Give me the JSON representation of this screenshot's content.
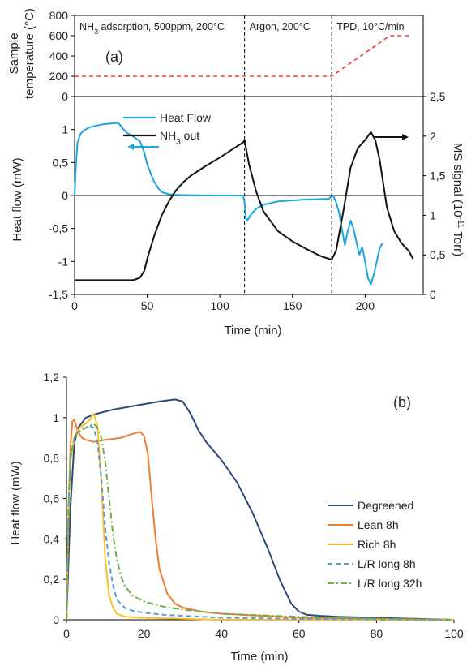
{
  "chart_data": [
    {
      "panel": "(a) top",
      "type": "line",
      "ylabel_line1": "Sample",
      "ylabel_line2": "temperature (°C)",
      "ylim": [
        0,
        800
      ],
      "yticks": [
        "0",
        "200",
        "400",
        "600",
        "800"
      ],
      "xlim": [
        0,
        240
      ],
      "panel_label": "(a)",
      "phases": [
        {
          "label": "NH3 adsorption, 500ppm, 200°C",
          "x_start": 0,
          "x_end": 117
        },
        {
          "label": "Argon, 200°C",
          "x_start": 117,
          "x_end": 177
        },
        {
          "label": "TPD, 10°C/min",
          "x_start": 177,
          "x_end": 240
        }
      ],
      "series": [
        {
          "color": "#ff3a2a",
          "style": "dashed",
          "x": [
            0,
            177,
            217,
            230
          ],
          "y": [
            200,
            200,
            600,
            600
          ]
        }
      ]
    },
    {
      "panel": "(a) bottom",
      "type": "line",
      "xlabel": "Time (min)",
      "xlim": [
        0,
        240
      ],
      "xticks": [
        "0",
        "50",
        "100",
        "150",
        "200"
      ],
      "ylabel": "Heat flow (mW)",
      "ylim": [
        -1.5,
        1.5
      ],
      "yticks": [
        "-1,5",
        "-1",
        "-0,5",
        "0",
        "0,5",
        "1"
      ],
      "y2label": "MS signal (10-11 Torr)",
      "y2lim": [
        0,
        2.5
      ],
      "y2ticks": [
        "0",
        "0,5",
        "1",
        "1,5",
        "2",
        "2,5"
      ],
      "vlines": [
        117,
        177
      ],
      "series": [
        {
          "name": "Heat Flow",
          "axis": "left",
          "color": "#1aa7e0",
          "x": [
            0,
            1,
            2,
            4,
            6,
            10,
            15,
            20,
            25,
            30,
            33,
            36,
            40,
            45,
            48,
            50,
            53,
            55,
            58,
            60,
            65,
            70,
            80,
            100,
            116,
            117,
            118,
            119,
            121,
            125,
            130,
            140,
            160,
            175,
            176,
            178,
            180,
            182,
            184,
            186,
            188,
            190,
            192,
            194,
            196,
            198,
            200,
            202,
            204,
            206,
            208,
            210,
            212
          ],
          "y": [
            0,
            0.5,
            0.8,
            0.93,
            0.98,
            1.03,
            1.06,
            1.08,
            1.09,
            1.1,
            1.02,
            0.95,
            0.9,
            0.82,
            0.65,
            0.47,
            0.3,
            0.2,
            0.1,
            0.05,
            0.02,
            0.01,
            0.005,
            0,
            0,
            -0.1,
            -0.35,
            -0.38,
            -0.3,
            -0.2,
            -0.14,
            -0.09,
            -0.06,
            -0.05,
            -0.03,
            0,
            -0.1,
            -0.25,
            -0.5,
            -0.75,
            -0.55,
            -0.38,
            -0.5,
            -0.7,
            -0.9,
            -0.78,
            -1.0,
            -1.25,
            -1.35,
            -1.2,
            -1.0,
            -0.8,
            -0.72
          ]
        },
        {
          "name": "NH3 out",
          "axis": "right",
          "color": "#111111",
          "x": [
            0,
            10,
            20,
            30,
            40,
            45,
            48,
            50,
            55,
            60,
            65,
            70,
            75,
            80,
            90,
            100,
            110,
            116,
            117,
            118,
            120,
            125,
            130,
            140,
            150,
            160,
            170,
            177,
            180,
            185,
            190,
            195,
            200,
            204,
            207,
            210,
            215,
            220,
            225,
            230,
            233
          ],
          "y": [
            0.18,
            0.18,
            0.18,
            0.18,
            0.18,
            0.21,
            0.3,
            0.45,
            0.75,
            1.0,
            1.18,
            1.32,
            1.42,
            1.5,
            1.62,
            1.73,
            1.85,
            1.92,
            1.95,
            1.85,
            1.65,
            1.3,
            1.05,
            0.8,
            0.67,
            0.57,
            0.48,
            0.44,
            0.55,
            1.05,
            1.6,
            1.85,
            1.95,
            2.05,
            1.95,
            1.7,
            1.1,
            0.8,
            0.65,
            0.55,
            0.45
          ]
        }
      ],
      "arrows": [
        {
          "direction": "left"
        },
        {
          "direction": "right"
        }
      ]
    },
    {
      "panel": "(b)",
      "type": "line",
      "xlabel": "Time (min)",
      "xlim": [
        0,
        100
      ],
      "xticks": [
        "0",
        "20",
        "40",
        "60",
        "80",
        "100"
      ],
      "ylabel": "Heat flow (mW)",
      "ylim": [
        0,
        1.2
      ],
      "yticks": [
        "0",
        "0,2",
        "0,4",
        "0,6",
        "0,8",
        "1",
        "1,2"
      ],
      "panel_label": "(b)",
      "legend_position": "right",
      "series": [
        {
          "name": "Degreened",
          "color": "#2e4a7a",
          "style": "solid",
          "x": [
            0,
            1,
            2,
            3,
            5,
            8,
            12,
            18,
            24,
            28,
            30,
            32,
            34,
            36,
            40,
            44,
            48,
            52,
            55,
            58,
            60,
            62,
            65,
            70,
            80,
            90,
            100
          ],
          "y": [
            0,
            0.55,
            0.87,
            0.95,
            1.0,
            1.02,
            1.04,
            1.06,
            1.08,
            1.09,
            1.08,
            1.02,
            0.94,
            0.88,
            0.79,
            0.68,
            0.53,
            0.35,
            0.2,
            0.08,
            0.04,
            0.025,
            0.02,
            0.015,
            0.01,
            0.005,
            0
          ]
        },
        {
          "name": "Lean 8h",
          "color": "#ef7d32",
          "style": "solid",
          "x": [
            0,
            0.5,
            1,
            1.5,
            2,
            3,
            4,
            5,
            7,
            10,
            14,
            17,
            19,
            20,
            21,
            22,
            23,
            24,
            26,
            28,
            30,
            35,
            40,
            50,
            60,
            80,
            100
          ],
          "y": [
            0,
            0.5,
            0.85,
            0.98,
            0.99,
            0.93,
            0.9,
            0.89,
            0.88,
            0.89,
            0.9,
            0.92,
            0.93,
            0.91,
            0.82,
            0.6,
            0.4,
            0.25,
            0.13,
            0.08,
            0.06,
            0.04,
            0.03,
            0.02,
            0.01,
            0.005,
            0
          ]
        },
        {
          "name": "Rich 8h",
          "color": "#fbbd2a",
          "style": "solid",
          "x": [
            0,
            0.5,
            1,
            2,
            3,
            4,
            5,
            6,
            7,
            8,
            9,
            10,
            11,
            12,
            13,
            15,
            20,
            30,
            40,
            60,
            100
          ],
          "y": [
            0,
            0.5,
            0.78,
            0.9,
            0.94,
            0.96,
            0.97,
            0.99,
            1.02,
            0.96,
            0.68,
            0.3,
            0.12,
            0.06,
            0.03,
            0.015,
            0.01,
            0.005,
            0,
            0,
            0
          ]
        },
        {
          "name": "L/R long 8h",
          "color": "#5b9bd5",
          "style": "dashed",
          "x": [
            0,
            0.5,
            1,
            2,
            3,
            4,
            5,
            6,
            7,
            8,
            9,
            10,
            11,
            12,
            13,
            15,
            17,
            20,
            25,
            30,
            40,
            60,
            100
          ],
          "y": [
            0,
            0.55,
            0.8,
            0.9,
            0.93,
            0.94,
            0.95,
            0.96,
            0.95,
            0.88,
            0.7,
            0.45,
            0.28,
            0.17,
            0.1,
            0.06,
            0.045,
            0.035,
            0.025,
            0.02,
            0.01,
            0.005,
            0
          ]
        },
        {
          "name": "L/R long 32h",
          "color": "#70ad47",
          "style": "dashdot",
          "x": [
            0,
            0.5,
            1,
            2,
            3,
            4,
            5,
            6,
            7,
            8,
            9,
            10,
            11,
            12,
            13,
            14,
            15,
            17,
            20,
            25,
            30,
            40,
            60,
            80,
            100
          ],
          "y": [
            0,
            0.55,
            0.8,
            0.9,
            0.93,
            0.94,
            0.95,
            0.96,
            0.97,
            0.95,
            0.9,
            0.78,
            0.6,
            0.42,
            0.3,
            0.22,
            0.17,
            0.12,
            0.09,
            0.065,
            0.05,
            0.03,
            0.015,
            0.005,
            0
          ]
        }
      ]
    }
  ]
}
